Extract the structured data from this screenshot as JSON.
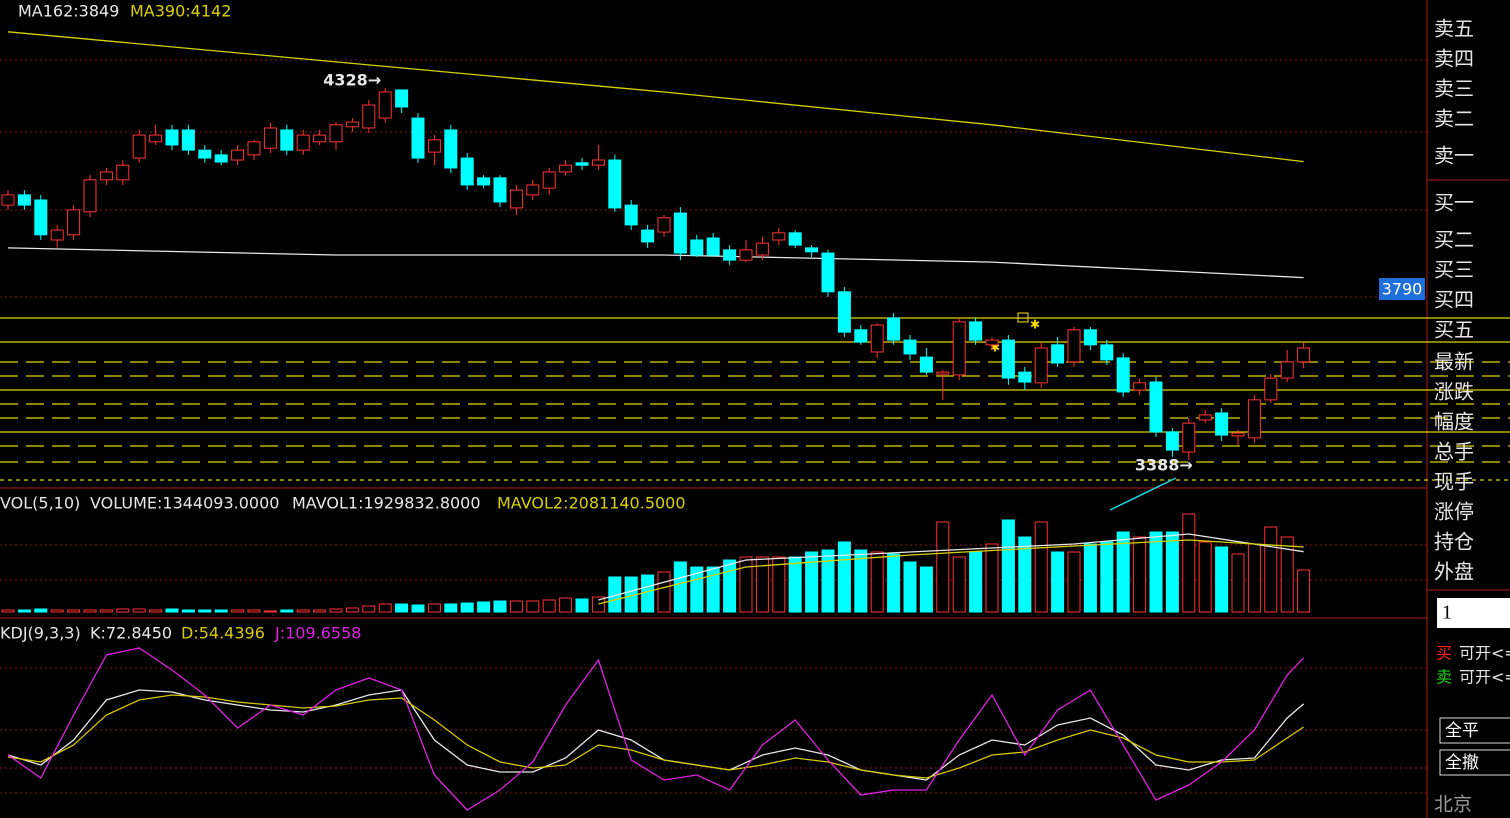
{
  "chart_data": [
    {
      "type": "candlestick",
      "up_color": "#ff3232",
      "down_color": "#00ffff",
      "open": [
        4032,
        4058,
        4045,
        3944,
        3957,
        4015,
        4096,
        4096,
        4151,
        4192,
        4222,
        4222,
        4171,
        4159,
        4146,
        4159,
        4176,
        4222,
        4171,
        4192,
        4192,
        4230,
        4227,
        4252,
        4323,
        4252,
        4166,
        4222,
        4151,
        4101,
        4101,
        4025,
        4058,
        4075,
        4116,
        4139,
        4133,
        4146,
        4032,
        3969,
        3964,
        4012,
        3944,
        3949,
        3919,
        3893,
        3906,
        3944,
        3962,
        3924,
        3911,
        3813,
        3717,
        3661,
        3747,
        3691,
        3648,
        3605,
        3603,
        3737,
        3679,
        3691,
        3610,
        3583,
        3679,
        3636,
        3717,
        3679,
        3646,
        3565,
        3585,
        3459,
        3408,
        3489,
        3507,
        3449,
        3444,
        3540,
        3595,
        3636
      ],
      "high": [
        4070,
        4070,
        4058,
        3982,
        4032,
        4108,
        4126,
        4146,
        4222,
        4235,
        4235,
        4235,
        4184,
        4171,
        4184,
        4197,
        4240,
        4235,
        4222,
        4222,
        4242,
        4252,
        4298,
        4328,
        4325,
        4265,
        4209,
        4235,
        4164,
        4108,
        4108,
        4083,
        4096,
        4126,
        4146,
        4151,
        4184,
        4159,
        4045,
        3982,
        4007,
        4027,
        3957,
        3962,
        3931,
        3944,
        3952,
        3974,
        3969,
        3931,
        3919,
        3825,
        3729,
        3734,
        3759,
        3704,
        3671,
        3615,
        3747,
        3749,
        3699,
        3704,
        3623,
        3684,
        3699,
        3724,
        3724,
        3691,
        3658,
        3593,
        3598,
        3469,
        3494,
        3514,
        3519,
        3464,
        3552,
        3605,
        3666,
        3684
      ],
      "low": [
        4020,
        4020,
        3944,
        3924,
        3944,
        4002,
        4083,
        4083,
        4139,
        4184,
        4171,
        4159,
        4139,
        4133,
        4133,
        4146,
        4164,
        4159,
        4159,
        4184,
        4171,
        4217,
        4214,
        4240,
        4265,
        4139,
        4133,
        4113,
        4070,
        4075,
        4027,
        4007,
        4045,
        4058,
        4108,
        4121,
        4121,
        4015,
        3969,
        3924,
        3952,
        3893,
        3901,
        3901,
        3881,
        3888,
        3893,
        3931,
        3924,
        3901,
        3800,
        3699,
        3679,
        3646,
        3679,
        3641,
        3603,
        3540,
        3590,
        3679,
        3666,
        3578,
        3565,
        3570,
        3623,
        3623,
        3666,
        3628,
        3547,
        3552,
        3446,
        3396,
        3388,
        3481,
        3436,
        3426,
        3431,
        3532,
        3585,
        3620
      ],
      "close": [
        4058,
        4032,
        3957,
        3969,
        4020,
        4096,
        4116,
        4133,
        4209,
        4209,
        4184,
        4171,
        4151,
        4141,
        4171,
        4192,
        4227,
        4171,
        4209,
        4209,
        4235,
        4242,
        4285,
        4318,
        4280,
        4151,
        4197,
        4126,
        4083,
        4083,
        4040,
        4070,
        4083,
        4116,
        4133,
        4133,
        4146,
        4025,
        3982,
        3939,
        4000,
        3911,
        3906,
        3906,
        3893,
        3919,
        3936,
        3962,
        3931,
        3914,
        3813,
        3711,
        3686,
        3729,
        3691,
        3656,
        3610,
        3610,
        3737,
        3691,
        3691,
        3595,
        3585,
        3671,
        3633,
        3717,
        3679,
        3641,
        3560,
        3583,
        3459,
        3413,
        3481,
        3502,
        3451,
        3456,
        3540,
        3595,
        3636,
        3671
      ],
      "lines": [
        {
          "name": "MA162",
          "legend": "MA162:3849",
          "color": "#e8e8e8",
          "x": [
            0,
            20,
            40,
            60,
            79
          ],
          "values": [
            3924,
            3906,
            3906,
            3888,
            3849
          ]
        },
        {
          "name": "MA390",
          "legend": "MA390:4142",
          "color": "#d8d000",
          "x": [
            0,
            20,
            40,
            60,
            79
          ],
          "values": [
            4470,
            4394,
            4318,
            4235,
            4142
          ]
        }
      ],
      "high_label": "4328→",
      "low_label": "3388→",
      "price_tag": "3790"
    },
    {
      "type": "bar",
      "title": "VOL(5,10)",
      "values": [
        64000,
        64000,
        96000,
        64000,
        64000,
        64000,
        64000,
        96000,
        96000,
        64000,
        96000,
        64000,
        64000,
        64000,
        64000,
        64000,
        32000,
        64000,
        64000,
        64000,
        96000,
        128000,
        192000,
        256000,
        256000,
        224000,
        256000,
        256000,
        288000,
        320000,
        352000,
        352000,
        352000,
        384000,
        448000,
        416000,
        480000,
        1120000,
        1120000,
        1184000,
        1280000,
        1600000,
        1440000,
        1440000,
        1664000,
        1760000,
        1760000,
        1760000,
        1760000,
        1920000,
        1984000,
        2240000,
        1984000,
        1920000,
        1856000,
        1600000,
        1440000,
        2880000,
        1760000,
        1920000,
        2176000,
        2944000,
        2400000,
        2880000,
        1920000,
        1920000,
        2176000,
        2240000,
        2560000,
        2400000,
        2560000,
        2560000,
        3136000,
        2240000,
        2080000,
        1856000,
        2176000,
        2720000,
        2400000,
        1344093
      ],
      "legend": "VOLUME:1344093.0000",
      "lines": [
        {
          "name": "MAVOL1",
          "legend": "MAVOL1:1929832.8000",
          "color": "#e8e8e8",
          "x": [
            36,
            45,
            55,
            65,
            72,
            79
          ],
          "values": [
            384000,
            1664000,
            1920000,
            2176000,
            2496000,
            1929832.8
          ]
        },
        {
          "name": "MAVOL2",
          "legend": "MAVOL2:2081140.5000",
          "color": "#d8d000",
          "x": [
            36,
            45,
            55,
            65,
            72,
            79
          ],
          "values": [
            256000,
            1440000,
            1824000,
            2112000,
            2304000,
            2081140.5
          ]
        }
      ]
    },
    {
      "type": "line",
      "title": "KDJ(9,3,3)",
      "x": [
        0,
        2,
        4,
        6,
        8,
        10,
        12,
        14,
        16,
        18,
        20,
        22,
        24,
        26,
        28,
        30,
        32,
        34,
        36,
        38,
        40,
        42,
        44,
        46,
        48,
        50,
        52,
        54,
        56,
        58,
        60,
        62,
        64,
        66,
        68,
        70,
        72,
        74,
        76,
        78,
        79
      ],
      "series": [
        {
          "name": "K",
          "legend": "K:72.8450",
          "color": "#e8e8e8",
          "values": [
            32,
            24,
            44,
            76,
            84,
            82.4,
            76,
            72,
            68,
            66.4,
            72,
            80,
            84,
            44,
            24,
            18.4,
            18.4,
            29.6,
            52,
            44,
            28,
            24,
            20,
            32,
            37.6,
            32,
            20,
            16,
            12,
            32,
            44,
            40,
            56,
            61.6,
            48,
            24,
            20,
            28,
            29.6,
            61.6,
            72.845
          ]
        },
        {
          "name": "D",
          "legend": "D:54.4396",
          "color": "#d8c800",
          "values": [
            30.4,
            26.4,
            40,
            64,
            76,
            80,
            78.4,
            74.4,
            72,
            69.6,
            71.2,
            76,
            77.6,
            60,
            40,
            26.4,
            21.6,
            24,
            40,
            36,
            28,
            24,
            20,
            24,
            29.6,
            26.4,
            20,
            16,
            13.6,
            21.6,
            32,
            34.4,
            44,
            52,
            45.6,
            32,
            26.4,
            26.4,
            28,
            45.6,
            54.4396
          ]
        },
        {
          "name": "J",
          "legend": "J:109.6558",
          "color": "#e020e0",
          "values": [
            32,
            13.6,
            64,
            112,
            117.6,
            100,
            80,
            53.6,
            72,
            64,
            84,
            93.6,
            84,
            16,
            -12,
            4,
            26.4,
            72,
            108,
            28,
            12,
            16,
            4,
            40,
            60,
            28,
            0,
            4,
            4,
            44,
            80,
            32,
            68,
            84,
            40,
            -4,
            8,
            26.4,
            52,
            96,
            109.6558
          ]
        }
      ]
    }
  ],
  "order_panel": {
    "ask": [
      "卖五",
      "卖四",
      "卖三",
      "卖二",
      "卖一"
    ],
    "bid": [
      "买一",
      "买二",
      "买三",
      "买四",
      "买五"
    ],
    "stats": [
      "最新",
      "涨跌",
      "幅度",
      "总手",
      "现手",
      "涨停",
      "持仓",
      "外盘"
    ],
    "quantity": "1",
    "buy": "买",
    "sell": "卖",
    "can_open": "可开<=",
    "close_all": "全平",
    "cancel_all": "全撤",
    "exchange": "北京"
  }
}
